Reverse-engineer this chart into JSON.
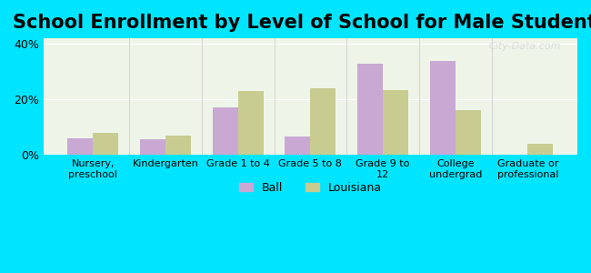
{
  "title": "School Enrollment by Level of School for Male Students",
  "categories": [
    "Nursery,\npreschool",
    "Kindergarten",
    "Grade 1 to 4",
    "Grade 5 to 8",
    "Grade 9 to\n12",
    "College\nundergrad",
    "Graduate or\nprofessional"
  ],
  "ball_values": [
    6,
    5.5,
    17,
    6.5,
    33,
    34,
    0
  ],
  "louisiana_values": [
    8,
    7,
    23,
    24,
    23.5,
    16,
    4
  ],
  "ball_color": "#c9a8d4",
  "louisiana_color": "#c8cc90",
  "background_outer": "#00e5ff",
  "background_inner": "#eef5e8",
  "ylabel_ticks": [
    "0%",
    "20%",
    "40%"
  ],
  "yticks": [
    0,
    20,
    40
  ],
  "ylim": [
    0,
    42
  ],
  "legend_ball": "Ball",
  "legend_louisiana": "Louisiana",
  "title_fontsize": 15,
  "bar_width": 0.35
}
